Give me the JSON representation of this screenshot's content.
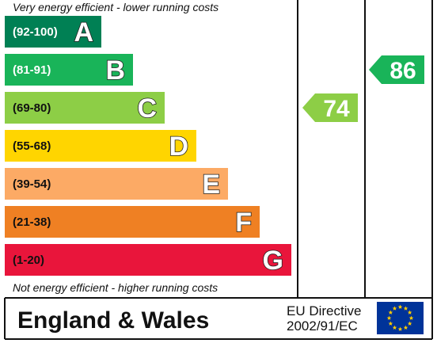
{
  "chart_data": {
    "type": "bar",
    "title": "",
    "top_note": "Very energy efficient - lower running costs",
    "bottom_note": "Not energy efficient - higher running costs",
    "bands": [
      {
        "range": "(92-100)",
        "letter": "A",
        "color": "#008054",
        "range_color": "#ffffff"
      },
      {
        "range": "(81-91)",
        "letter": "B",
        "color": "#19b459",
        "range_color": "#ffffff"
      },
      {
        "range": "(69-80)",
        "letter": "C",
        "color": "#8dce46",
        "range_color": "#111111"
      },
      {
        "range": "(55-68)",
        "letter": "D",
        "color": "#ffd500",
        "range_color": "#111111"
      },
      {
        "range": "(39-54)",
        "letter": "E",
        "color": "#fcaa65",
        "range_color": "#111111"
      },
      {
        "range": "(21-38)",
        "letter": "F",
        "color": "#ef8023",
        "range_color": "#111111"
      },
      {
        "range": "(1-20)",
        "letter": "G",
        "color": "#e9153b",
        "range_color": "#111111"
      }
    ],
    "ratings": [
      {
        "column": "current",
        "value": 74,
        "label": "74",
        "band": "C",
        "color": "#8dce46"
      },
      {
        "column": "potential",
        "value": 86,
        "label": "86",
        "band": "B",
        "color": "#19b459"
      }
    ],
    "footer": {
      "region": "England & Wales",
      "directive_line1": "EU Directive",
      "directive_line2": "2002/91/EC",
      "flag_color": "#003399",
      "star_color": "#ffcc00"
    }
  }
}
